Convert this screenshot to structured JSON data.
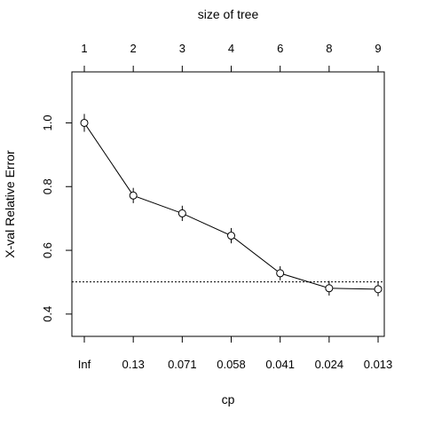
{
  "chart_data": {
    "type": "line",
    "top_axis_label": "size of tree",
    "xlabel": "cp",
    "ylabel": "X-val Relative Error",
    "bottom_tick_labels": [
      "Inf",
      "0.13",
      "0.071",
      "0.058",
      "0.041",
      "0.024",
      "0.013"
    ],
    "top_tick_labels": [
      "1",
      "2",
      "3",
      "4",
      "6",
      "8",
      "9"
    ],
    "y_tick_labels": [
      "0.4",
      "0.6",
      "0.8",
      "1.0"
    ],
    "y_ticks": [
      0.4,
      0.6,
      0.8,
      1.0
    ],
    "ylim": [
      0.33,
      1.16
    ],
    "series": [
      {
        "values": [
          1.0,
          0.772,
          0.716,
          0.646,
          0.528,
          0.481,
          0.478
        ],
        "error_low": [
          0.972,
          0.748,
          0.692,
          0.622,
          0.506,
          0.458,
          0.456
        ],
        "error_high": [
          1.028,
          0.796,
          0.74,
          0.67,
          0.55,
          0.504,
          0.5
        ]
      }
    ],
    "reference_line": 0.501,
    "grid": false,
    "legend": "none"
  }
}
